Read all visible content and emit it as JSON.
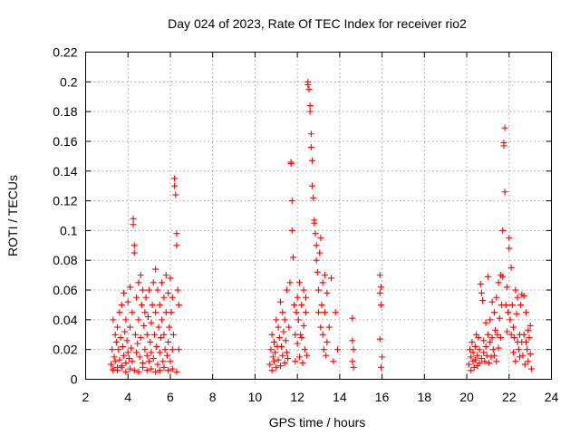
{
  "chart_data": {
    "type": "scatter",
    "title": "Day 024 of 2023, Rate Of TEC Index for receiver rio2",
    "xlabel": "GPS time / hours",
    "ylabel": "ROTI / TECUs",
    "xlim": [
      2,
      24
    ],
    "ylim": [
      0,
      0.22
    ],
    "xticks": [
      2,
      4,
      6,
      8,
      10,
      12,
      14,
      16,
      18,
      20,
      22,
      24
    ],
    "yticks": [
      0,
      0.02,
      0.04,
      0.06,
      0.08,
      0.1,
      0.12,
      0.14,
      0.16,
      0.18,
      0.2,
      0.22
    ],
    "xtick_labels": [
      "2",
      "4",
      "6",
      "8",
      "10",
      "12",
      "14",
      "16",
      "18",
      "20",
      "22",
      "24"
    ],
    "ytick_labels": [
      "0",
      "0.02",
      "0.04",
      "0.06",
      "0.08",
      "0.1",
      "0.12",
      "0.14",
      "0.16",
      "0.18",
      "0.2",
      "0.22"
    ],
    "grid": true,
    "marker": "+",
    "color": "#ff0000",
    "series": [
      {
        "x": [
          3.2,
          3.25,
          3.3,
          3.3,
          3.35,
          3.4,
          3.4,
          3.45,
          3.5,
          3.5,
          3.55,
          3.6,
          3.6,
          3.65,
          3.7,
          3.7,
          3.75,
          3.8,
          3.8,
          3.85,
          3.9,
          3.9,
          3.95,
          4.0,
          4.0,
          4.05,
          4.1,
          4.1,
          4.15,
          4.2,
          4.2,
          4.25,
          4.25,
          4.3,
          4.3,
          4.35,
          4.4,
          4.4,
          4.45,
          4.5,
          4.5,
          4.55,
          4.6,
          4.6,
          4.65,
          4.7,
          4.7,
          4.75,
          4.8,
          4.8,
          4.85,
          4.9,
          4.9,
          4.95,
          5.0,
          5.0,
          5.05,
          5.1,
          5.1,
          5.15,
          5.2,
          5.2,
          5.25,
          5.3,
          5.3,
          5.35,
          5.4,
          5.4,
          5.45,
          5.5,
          5.5,
          5.55,
          5.6,
          5.6,
          5.65,
          5.7,
          5.7,
          5.75,
          5.8,
          5.8,
          5.85,
          5.9,
          5.9,
          5.95,
          6.0,
          6.0,
          6.05,
          6.1,
          6.1,
          6.15,
          6.2,
          6.2,
          6.25,
          6.3,
          6.3,
          6.35,
          6.4,
          6.4,
          3.3,
          3.5,
          3.7,
          3.9,
          4.1,
          4.3,
          4.5,
          4.7,
          4.9,
          5.1,
          5.3,
          5.5,
          5.7,
          5.9,
          6.1,
          6.3
        ],
        "y": [
          0.01,
          0.02,
          0.04,
          0.006,
          0.015,
          0.03,
          0.012,
          0.025,
          0.008,
          0.035,
          0.02,
          0.013,
          0.045,
          0.028,
          0.009,
          0.05,
          0.022,
          0.016,
          0.058,
          0.032,
          0.011,
          0.04,
          0.026,
          0.018,
          0.052,
          0.014,
          0.035,
          0.062,
          0.021,
          0.045,
          0.012,
          0.108,
          0.104,
          0.09,
          0.085,
          0.03,
          0.018,
          0.055,
          0.024,
          0.04,
          0.065,
          0.015,
          0.07,
          0.028,
          0.05,
          0.011,
          0.06,
          0.036,
          0.02,
          0.045,
          0.055,
          0.016,
          0.03,
          0.042,
          0.012,
          0.06,
          0.025,
          0.038,
          0.018,
          0.05,
          0.065,
          0.014,
          0.03,
          0.074,
          0.045,
          0.022,
          0.06,
          0.01,
          0.035,
          0.05,
          0.018,
          0.028,
          0.04,
          0.065,
          0.012,
          0.055,
          0.03,
          0.02,
          0.045,
          0.07,
          0.016,
          0.058,
          0.025,
          0.035,
          0.068,
          0.012,
          0.045,
          0.02,
          0.055,
          0.03,
          0.135,
          0.13,
          0.124,
          0.098,
          0.09,
          0.06,
          0.05,
          0.02,
          0.007,
          0.006,
          0.008,
          0.005,
          0.007,
          0.006,
          0.005,
          0.008,
          0.006,
          0.007,
          0.005,
          0.006,
          0.008,
          0.006,
          0.007,
          0.005
        ]
      },
      {
        "x": [
          10.7,
          10.75,
          10.8,
          10.8,
          10.85,
          10.9,
          10.9,
          10.95,
          11.0,
          11.0,
          11.05,
          11.1,
          11.1,
          11.15,
          11.2,
          11.2,
          11.25,
          11.3,
          11.3,
          11.35,
          11.4,
          11.4,
          11.45,
          11.5,
          11.5,
          11.55,
          11.6,
          11.65,
          11.7,
          11.7,
          11.75,
          11.75,
          11.8,
          11.85,
          11.9,
          11.9,
          11.95,
          12.0,
          12.0,
          12.05,
          12.1,
          12.1,
          12.15,
          12.2,
          12.2,
          12.25,
          12.3,
          12.3,
          12.35,
          12.4,
          12.4,
          12.45,
          12.5,
          12.5,
          12.55,
          12.6,
          12.6,
          12.65,
          12.65,
          12.7,
          12.7,
          12.75,
          12.8,
          12.8,
          12.85,
          12.9,
          12.9,
          12.95,
          13.0,
          13.0,
          13.05,
          13.1,
          13.1,
          13.15,
          13.2,
          13.2,
          13.25,
          13.3,
          13.3,
          13.35,
          13.4,
          13.4,
          13.5,
          13.6,
          13.7,
          13.8,
          13.9,
          14.6,
          14.6,
          14.65,
          14.6,
          14.65,
          15.9,
          15.95,
          15.9,
          15.95,
          15.9,
          16.0,
          15.95
        ],
        "y": [
          0.01,
          0.02,
          0.03,
          0.006,
          0.015,
          0.025,
          0.012,
          0.018,
          0.008,
          0.04,
          0.022,
          0.013,
          0.035,
          0.028,
          0.009,
          0.052,
          0.022,
          0.016,
          0.045,
          0.032,
          0.011,
          0.04,
          0.026,
          0.018,
          0.06,
          0.014,
          0.035,
          0.065,
          0.146,
          0.145,
          0.12,
          0.1,
          0.082,
          0.05,
          0.03,
          0.012,
          0.045,
          0.055,
          0.024,
          0.04,
          0.065,
          0.015,
          0.03,
          0.028,
          0.05,
          0.011,
          0.06,
          0.036,
          0.02,
          0.045,
          0.055,
          0.016,
          0.2,
          0.198,
          0.195,
          0.184,
          0.18,
          0.165,
          0.156,
          0.147,
          0.13,
          0.122,
          0.107,
          0.105,
          0.098,
          0.09,
          0.08,
          0.072,
          0.06,
          0.045,
          0.085,
          0.095,
          0.035,
          0.05,
          0.065,
          0.03,
          0.02,
          0.045,
          0.07,
          0.016,
          0.058,
          0.025,
          0.035,
          0.068,
          0.012,
          0.045,
          0.02,
          0.041,
          0.026,
          0.02,
          0.012,
          0.008,
          0.07,
          0.062,
          0.058,
          0.05,
          0.027,
          0.015,
          0.008
        ]
      },
      {
        "x": [
          20.1,
          20.15,
          20.2,
          20.2,
          20.25,
          20.3,
          20.3,
          20.35,
          20.4,
          20.4,
          20.45,
          20.5,
          20.5,
          20.55,
          20.6,
          20.6,
          20.65,
          20.7,
          20.7,
          20.75,
          20.8,
          20.8,
          20.85,
          20.9,
          20.9,
          20.95,
          21.0,
          21.0,
          21.05,
          21.1,
          21.1,
          21.15,
          21.2,
          21.2,
          21.25,
          21.3,
          21.3,
          21.35,
          21.4,
          21.4,
          21.45,
          21.5,
          21.5,
          21.55,
          21.6,
          21.6,
          21.65,
          21.7,
          21.7,
          21.75,
          21.75,
          21.8,
          21.8,
          21.85,
          21.9,
          21.9,
          21.95,
          22.0,
          22.0,
          22.05,
          22.1,
          22.1,
          22.15,
          22.2,
          22.2,
          22.25,
          22.3,
          22.3,
          22.35,
          22.4,
          22.4,
          22.45,
          22.5,
          22.5,
          22.55,
          22.6,
          22.6,
          22.65,
          22.7,
          22.7,
          22.75,
          22.8,
          22.8,
          22.85,
          22.9,
          22.9,
          22.95,
          23.0,
          23.0,
          23.05
        ],
        "y": [
          0.01,
          0.02,
          0.006,
          0.015,
          0.025,
          0.012,
          0.018,
          0.008,
          0.022,
          0.013,
          0.03,
          0.009,
          0.016,
          0.028,
          0.011,
          0.02,
          0.064,
          0.058,
          0.014,
          0.053,
          0.018,
          0.026,
          0.012,
          0.038,
          0.022,
          0.016,
          0.03,
          0.069,
          0.011,
          0.025,
          0.04,
          0.015,
          0.052,
          0.028,
          0.02,
          0.045,
          0.016,
          0.033,
          0.012,
          0.055,
          0.03,
          0.021,
          0.065,
          0.041,
          0.028,
          0.07,
          0.05,
          0.1,
          0.069,
          0.159,
          0.157,
          0.169,
          0.126,
          0.05,
          0.032,
          0.062,
          0.045,
          0.095,
          0.088,
          0.04,
          0.075,
          0.03,
          0.05,
          0.018,
          0.035,
          0.028,
          0.06,
          0.012,
          0.044,
          0.025,
          0.055,
          0.02,
          0.03,
          0.015,
          0.05,
          0.025,
          0.057,
          0.016,
          0.03,
          0.056,
          0.01,
          0.025,
          0.045,
          0.02,
          0.033,
          0.012,
          0.028,
          0.017,
          0.036,
          0.007
        ]
      }
    ]
  }
}
